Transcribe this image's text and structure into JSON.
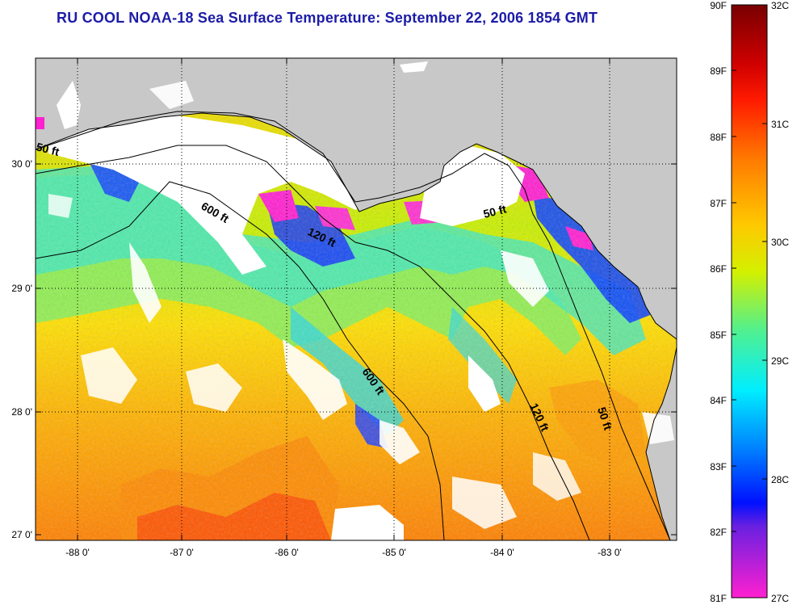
{
  "title": "RU COOL  NOAA-18  Sea Surface Temperature:  September 22, 2006 1854 GMT",
  "map": {
    "lon_ticks": [
      "-88 0'",
      "-87 0'",
      "-86 0'",
      "-85 0'",
      "-84 0'",
      "-83 0'"
    ],
    "lat_ticks": [
      "30 0'",
      "29 0'",
      "28 0'",
      "27 0'"
    ],
    "contour_labels": [
      "50 ft",
      "600 ft",
      "120 ft",
      "50 ft",
      "600 ft",
      "120 ft",
      "50 ft"
    ],
    "colors": {
      "land": "#c8c8c8",
      "cloud": "#ffffff",
      "frame": "#000000"
    }
  },
  "colorbar": {
    "fahrenheit": [
      "90F",
      "89F",
      "88F",
      "87F",
      "86F",
      "85F",
      "84F",
      "83F",
      "82F",
      "81F"
    ],
    "celsius": [
      "32C",
      "31C",
      "30C",
      "29C",
      "28C",
      "27C"
    ],
    "stops": [
      "#7a0000",
      "#d40000",
      "#ff2a00",
      "#ff7f00",
      "#ffcf00",
      "#d8f000",
      "#60f080",
      "#00f0ff",
      "#0090ff",
      "#0020ff",
      "#8020d0",
      "#ff20d0"
    ]
  }
}
